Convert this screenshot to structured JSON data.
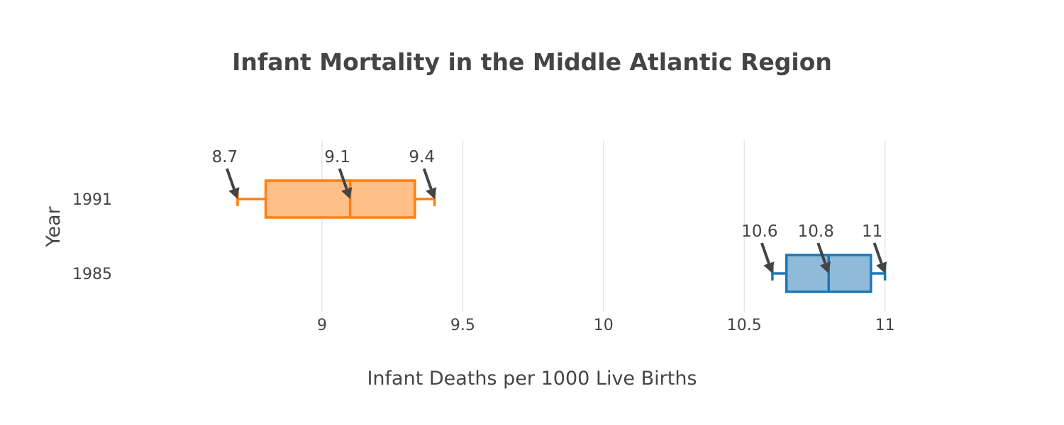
{
  "chart_data": {
    "type": "box",
    "orientation": "horizontal",
    "title": "Infant Mortality in the Middle Atlantic Region",
    "xlabel": "Infant Deaths per 1000 Live Births",
    "ylabel": "Year",
    "xlim": [
      8.35,
      11.2
    ],
    "x_ticks": [
      9,
      9.5,
      10,
      10.5,
      11
    ],
    "x_tick_labels": [
      "9",
      "9.5",
      "10",
      "10.5",
      "11"
    ],
    "categories": [
      "1991",
      "1985"
    ],
    "grid": "vertical",
    "legend": "none",
    "series": [
      {
        "category": "1991",
        "color": "#ff7f0e",
        "fill": "#ffbf86",
        "min": 8.7,
        "q1": 8.8,
        "median": 9.1,
        "q3": 9.33,
        "max": 9.4,
        "annotations": [
          {
            "value": 8.7,
            "text": "8.7"
          },
          {
            "value": 9.1,
            "text": "9.1"
          },
          {
            "value": 9.4,
            "text": "9.4"
          }
        ]
      },
      {
        "category": "1985",
        "color": "#1f77b4",
        "fill": "#8fbad9",
        "min": 10.6,
        "q1": 10.65,
        "median": 10.8,
        "q3": 10.95,
        "max": 11,
        "annotations": [
          {
            "value": 10.6,
            "text": "10.6"
          },
          {
            "value": 10.8,
            "text": "10.8"
          },
          {
            "value": 11,
            "text": "11"
          }
        ]
      }
    ]
  }
}
